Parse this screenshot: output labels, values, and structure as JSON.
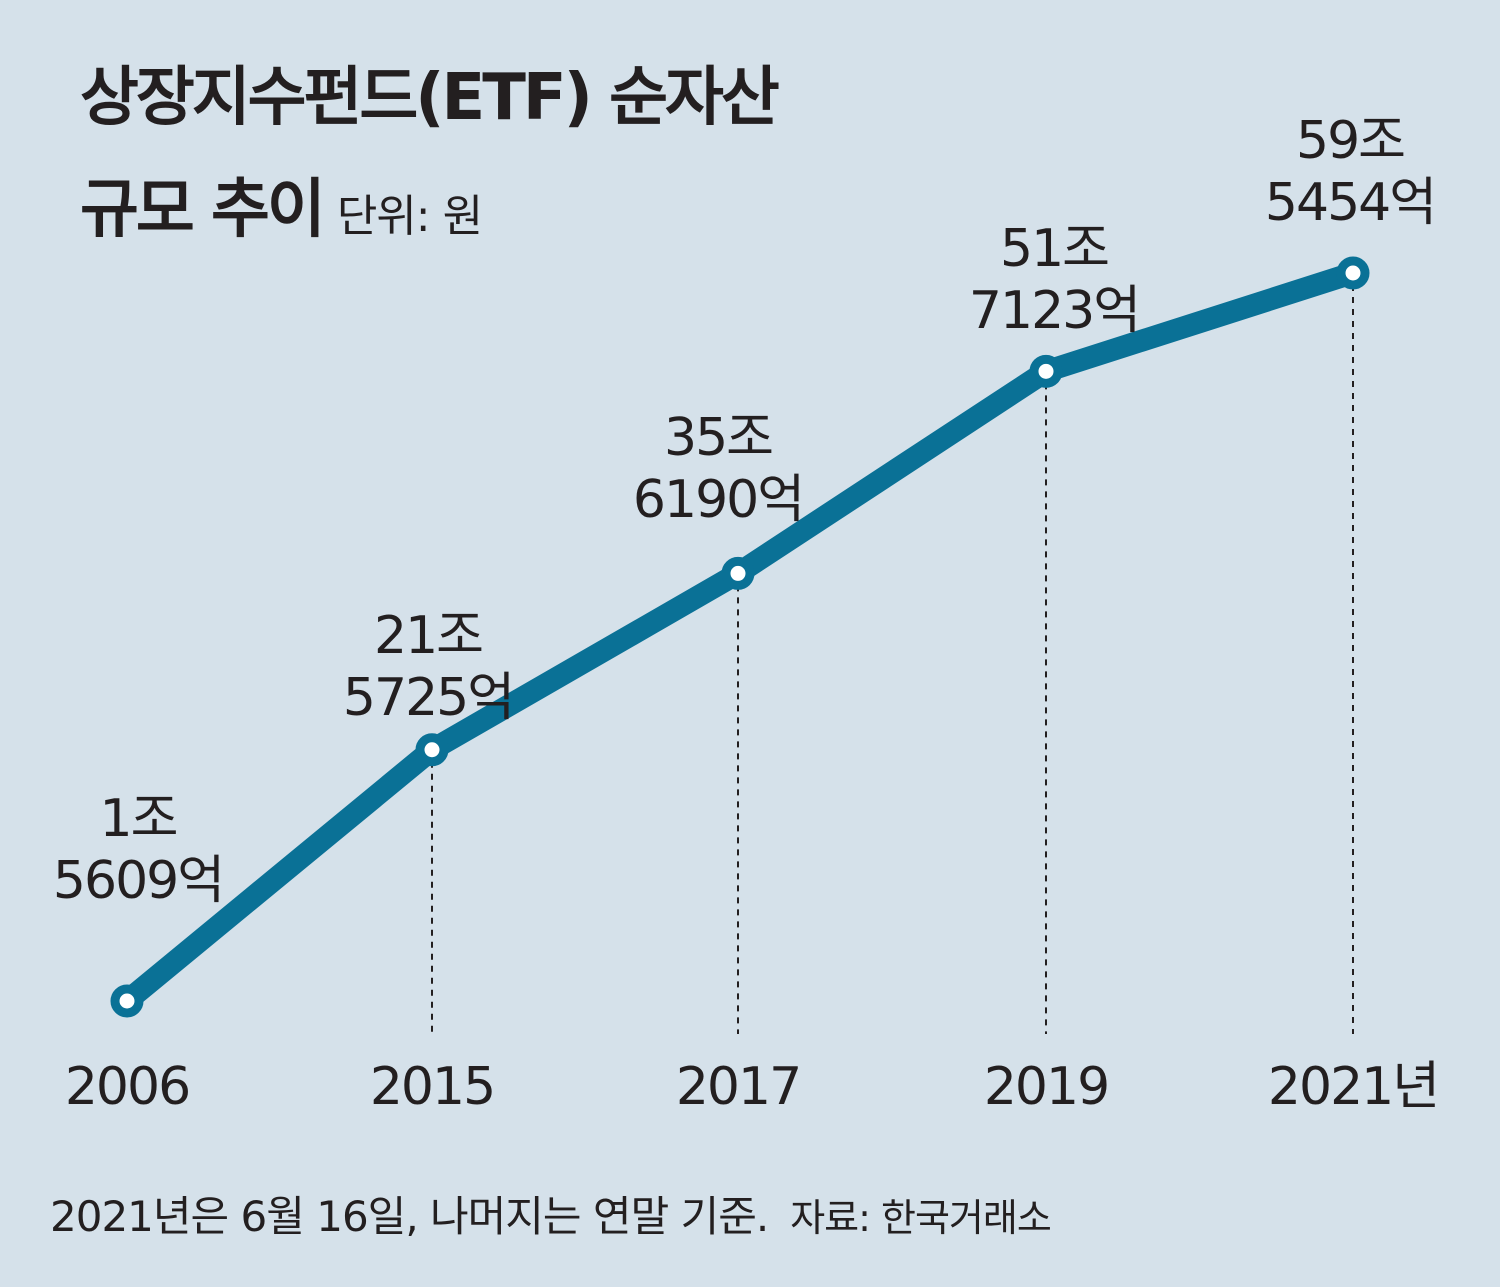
{
  "chart_data": {
    "type": "line",
    "title_line1": "상장지수펀드(ETF) 순자산",
    "title_line2": "규모 추이",
    "unit": "단위: 원",
    "categories": [
      "2006",
      "2015",
      "2017",
      "2019",
      "2021년"
    ],
    "values": [
      15609,
      215725,
      356190,
      517123,
      595454
    ],
    "value_unit": "억원",
    "labels": [
      [
        "1조",
        "5609억"
      ],
      [
        "21조",
        "5725억"
      ],
      [
        "35조",
        "6190억"
      ],
      [
        "51조",
        "7123억"
      ],
      [
        "59조",
        "5454억"
      ]
    ],
    "ylim": [
      0,
      620000
    ],
    "grid": false,
    "legend": "none",
    "footnote": "2021년은 6월 16일, 나머지는 연말 기준.",
    "source": "자료: 한국거래소"
  },
  "colors": {
    "background": "#d5e1ea",
    "line": "#0a7196",
    "marker_fill": "#ffffff",
    "text": "#231f20"
  }
}
